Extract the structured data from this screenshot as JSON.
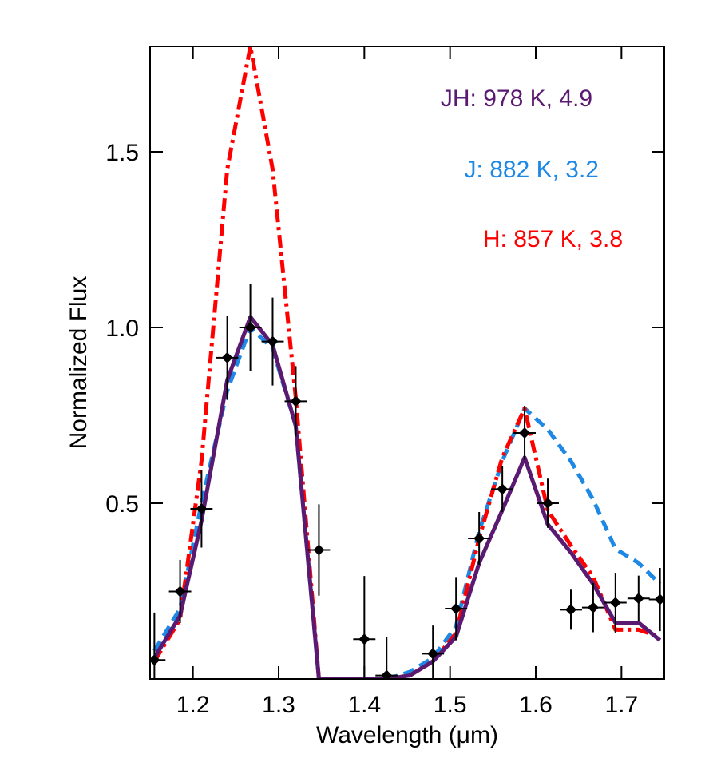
{
  "chart_data": {
    "type": "line",
    "xlabel": "Wavelength (μm)",
    "ylabel": "Normalized Flux",
    "xlim": [
      1.15,
      1.75
    ],
    "ylim": [
      0,
      1.8
    ],
    "xticks": [
      1.2,
      1.3,
      1.4,
      1.5,
      1.6,
      1.7
    ],
    "yticks": [
      0.5,
      {
        "value": 1,
        "label": "1.0"
      },
      1.5
    ],
    "x": [
      1.155,
      1.185,
      1.21,
      1.24,
      1.267,
      1.293,
      1.32,
      1.347,
      1.374,
      1.4,
      1.426,
      1.453,
      1.48,
      1.507,
      1.534,
      1.561,
      1.587,
      1.614,
      1.641,
      1.667,
      1.693,
      1.72,
      1.745
    ],
    "series": [
      {
        "color": "#1e88e5",
        "dash": "14,8",
        "values": [
          0.08,
          0.2,
          0.5,
          0.82,
          1.0,
          0.94,
          0.72,
          0,
          0,
          0,
          0,
          0.02,
          0.06,
          0.15,
          0.42,
          0.62,
          0.77,
          0.71,
          0.62,
          0.51,
          0.37,
          0.33,
          0.27
        ]
      },
      {
        "color": "#ff0000",
        "dash": "16,6,4,6",
        "values": [
          0.05,
          0.17,
          0.62,
          1.45,
          1.8,
          1.45,
          0.8,
          0,
          0,
          0,
          0,
          0.01,
          0.05,
          0.13,
          0.4,
          0.63,
          0.77,
          0.48,
          0.38,
          0.29,
          0.14,
          0.14,
          0.12
        ]
      },
      {
        "color": "#5a1a72",
        "dash": "",
        "values": [
          0.06,
          0.18,
          0.45,
          0.85,
          1.03,
          0.95,
          0.72,
          0,
          0,
          0,
          0,
          0.01,
          0.05,
          0.12,
          0.33,
          0.48,
          0.63,
          0.44,
          0.36,
          0.27,
          0.16,
          0.16,
          0.11
        ]
      }
    ],
    "points": {
      "color": "#000000",
      "x": [
        1.155,
        1.185,
        1.21,
        1.24,
        1.267,
        1.293,
        1.32,
        1.347,
        1.4,
        1.426,
        1.48,
        1.507,
        1.534,
        1.561,
        1.587,
        1.614,
        1.641,
        1.667,
        1.693,
        1.72,
        1.745
      ],
      "values": [
        0.054,
        0.249,
        0.484,
        0.914,
        1.0,
        0.96,
        0.79,
        0.367,
        0.113,
        0.01,
        0.072,
        0.2,
        0.4,
        0.54,
        0.7,
        0.5,
        0.197,
        0.203,
        0.217,
        0.229,
        0.226
      ],
      "yerr": [
        0.135,
        0.09,
        0.11,
        0.12,
        0.125,
        0.125,
        0.1,
        0.13,
        0.18,
        0.11,
        0.08,
        0.09,
        0.075,
        0.065,
        0.077,
        0.07,
        0.057,
        0.07,
        0.085,
        0.065,
        0.09
      ],
      "xerr": [
        0.013,
        0.013,
        0.013,
        0.013,
        0.013,
        0.013,
        0.013,
        0.013,
        0.013,
        0.013,
        0.013,
        0.013,
        0.013,
        0.013,
        0.013,
        0.013,
        0.013,
        0.013,
        0.013,
        0.013,
        0.013
      ]
    },
    "annotations": [
      {
        "text": "JH: 978 K, 4.9",
        "color": "#5a1a72"
      },
      {
        "text": "J: 882 K, 3.2",
        "color": "#1e88e5"
      },
      {
        "text": "H: 857 K, 3.8",
        "color": "#ff0000"
      }
    ]
  }
}
